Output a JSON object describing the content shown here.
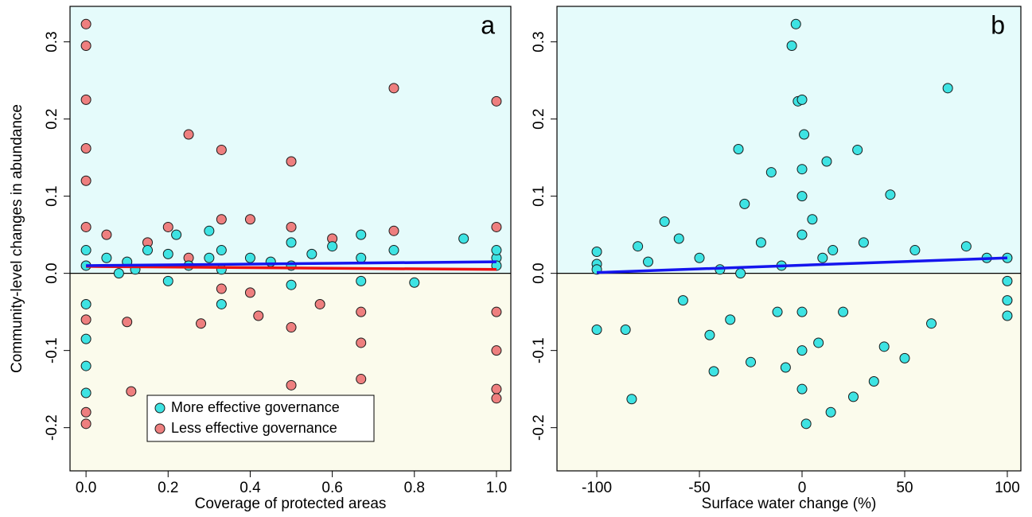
{
  "chart_data": [
    {
      "type": "scatter",
      "ylabel": "Community-level changes in abundance",
      "xlabel": "Coverage of protected areas",
      "panel_label": "a",
      "xlim": [
        -0.039,
        1.035
      ],
      "ylim": [
        -0.256,
        0.346
      ],
      "xticks": [
        {
          "value": 0,
          "label": "0.0"
        },
        0.2,
        0.4,
        0.6,
        0.8,
        {
          "value": 1,
          "label": "1.0"
        }
      ],
      "yticks": [
        -0.2,
        -0.1,
        {
          "value": 0,
          "label": "0.0"
        },
        0.1,
        0.2,
        0.3
      ],
      "legend": "lower left",
      "background": {
        "above": "#e5fbfb",
        "below": "#fbfbec"
      },
      "series": [
        {
          "name": "More effective governance",
          "color": "#3ee3e3",
          "x": [
            0,
            0,
            0,
            0,
            0,
            0,
            0.05,
            0.1,
            0.15,
            0.2,
            0.22,
            0.25,
            0.3,
            0.33,
            0.33,
            0.33,
            0.4,
            0.45,
            0.5,
            0.5,
            0.5,
            0.55,
            0.6,
            0.67,
            0.67,
            0.67,
            0.75,
            0.8,
            0.92,
            1,
            1,
            1,
            0.2,
            0.3,
            0.08,
            0.12
          ],
          "values": [
            0.03,
            0.01,
            -0.04,
            -0.085,
            -0.12,
            -0.155,
            0.02,
            0.015,
            0.03,
            0.025,
            0.05,
            0.01,
            0.02,
            0.03,
            -0.04,
            0.005,
            0.02,
            0.015,
            0.01,
            -0.015,
            0.04,
            0.025,
            0.035,
            0.02,
            -0.01,
            0.05,
            0.03,
            -0.012,
            0.045,
            0.02,
            0.01,
            0.03,
            -0.01,
            0.055,
            0.0,
            0.005
          ]
        },
        {
          "name": "Less effective governance",
          "color": "#ee7f7f",
          "x": [
            0,
            0,
            0,
            0,
            0,
            0,
            0,
            0,
            0,
            0.05,
            0.1,
            0.11,
            0.15,
            0.2,
            0.25,
            0.25,
            0.28,
            0.33,
            0.33,
            0.33,
            0.4,
            0.4,
            0.42,
            0.5,
            0.5,
            0.5,
            0.5,
            0.57,
            0.6,
            0.67,
            0.67,
            0.67,
            0.75,
            0.75,
            1,
            1,
            1,
            1,
            1,
            1
          ],
          "values": [
            0.323,
            0.295,
            0.225,
            0.162,
            0.12,
            0.06,
            -0.06,
            -0.18,
            -0.195,
            0.05,
            -0.063,
            -0.153,
            0.04,
            0.06,
            0.18,
            0.02,
            -0.065,
            0.16,
            0.07,
            -0.02,
            0.07,
            -0.025,
            -0.055,
            0.145,
            0.06,
            -0.07,
            -0.145,
            -0.04,
            0.045,
            -0.05,
            -0.137,
            -0.09,
            0.24,
            0.055,
            0.223,
            0.06,
            -0.05,
            -0.1,
            -0.15,
            -0.162
          ]
        }
      ],
      "fit_lines": [
        {
          "color": "#ee1111",
          "x": [
            0,
            1
          ],
          "values": [
            0.009,
            0.005
          ]
        },
        {
          "color": "#1515ee",
          "x": [
            0,
            1
          ],
          "values": [
            0.01,
            0.015
          ]
        }
      ]
    },
    {
      "type": "scatter",
      "xlabel": "Surface water change (%)",
      "panel_label": "b",
      "xlim": [
        -119.4,
        106.6
      ],
      "ylim": [
        -0.256,
        0.346
      ],
      "xticks": [
        -100,
        -50,
        0,
        50,
        100
      ],
      "yticks": [
        -0.2,
        -0.1,
        {
          "value": 0,
          "label": "0.0"
        },
        0.1,
        0.2,
        0.3
      ],
      "background": {
        "above": "#e5fbfb",
        "below": "#fbfbec"
      },
      "series": [
        {
          "color": "#3ee3e3",
          "x": [
            -100,
            -100,
            -100,
            -100,
            -83,
            -86,
            -80,
            -75,
            -67,
            -60,
            -58,
            -50,
            -45,
            -43,
            -40,
            -35,
            -31,
            -28,
            -25,
            -20,
            -15,
            -12,
            -8,
            -5,
            -3,
            -2,
            0,
            0,
            0,
            0,
            0,
            0,
            0,
            1,
            2,
            5,
            8,
            12,
            14,
            15,
            20,
            25,
            27,
            30,
            35,
            40,
            43,
            50,
            55,
            63,
            71,
            80,
            90,
            100,
            100,
            100,
            100,
            -10,
            10,
            -30
          ],
          "values": [
            0.028,
            0.012,
            0.005,
            -0.073,
            -0.163,
            -0.073,
            0.035,
            0.015,
            0.067,
            0.045,
            -0.035,
            0.02,
            -0.08,
            -0.127,
            0.005,
            -0.06,
            0.161,
            0.09,
            -0.115,
            0.04,
            0.131,
            -0.05,
            -0.122,
            0.295,
            0.323,
            0.223,
            0.225,
            0.135,
            0.1,
            0.05,
            -0.05,
            -0.1,
            -0.15,
            0.18,
            -0.195,
            0.07,
            -0.09,
            0.145,
            -0.18,
            0.03,
            -0.05,
            -0.16,
            0.16,
            0.04,
            -0.14,
            -0.095,
            0.102,
            -0.11,
            0.03,
            -0.065,
            0.24,
            0.035,
            0.02,
            0.02,
            -0.01,
            -0.035,
            -0.055,
            0.01,
            0.02,
            0.0
          ]
        }
      ],
      "fit_lines": [
        {
          "color": "#1515ee",
          "x": [
            -100,
            100
          ],
          "values": [
            0.001,
            0.02
          ]
        }
      ]
    }
  ]
}
